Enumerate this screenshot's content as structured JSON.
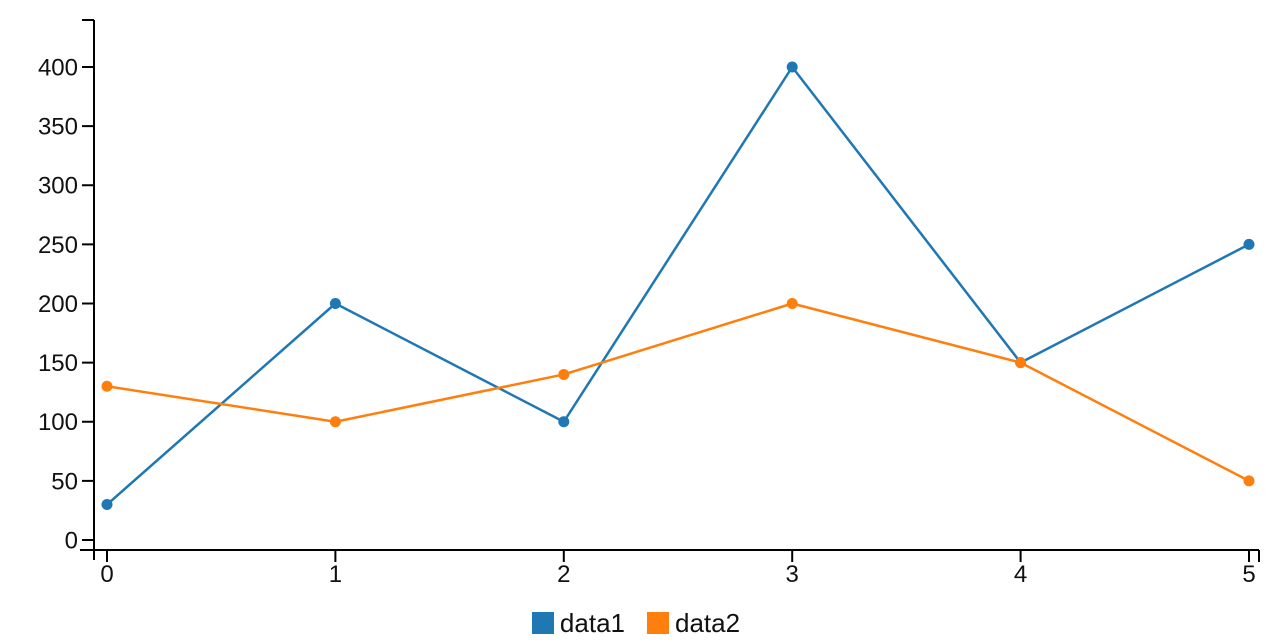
{
  "chart_data": {
    "type": "line",
    "x": [
      0,
      1,
      2,
      3,
      4,
      5
    ],
    "series": [
      {
        "name": "data1",
        "color": "#1f77b4",
        "values": [
          30,
          200,
          100,
          400,
          150,
          250
        ]
      },
      {
        "name": "data2",
        "color": "#ff7f0e",
        "values": [
          130,
          100,
          140,
          200,
          150,
          50
        ]
      }
    ],
    "x_ticks": [
      "0",
      "1",
      "2",
      "3",
      "4",
      "5"
    ],
    "y_ticks": [
      "0",
      "50",
      "100",
      "150",
      "200",
      "250",
      "300",
      "350",
      "400"
    ],
    "y_tick_values": [
      0,
      50,
      100,
      150,
      200,
      250,
      300,
      350,
      400
    ],
    "title": "",
    "xlabel": "",
    "ylabel": "",
    "xlim": [
      0,
      5
    ],
    "ylim": [
      0,
      440
    ],
    "grid": false,
    "marker": "circle",
    "legend_position": "bottom-center",
    "axis_color": "#000000",
    "text_color": "#111111"
  }
}
